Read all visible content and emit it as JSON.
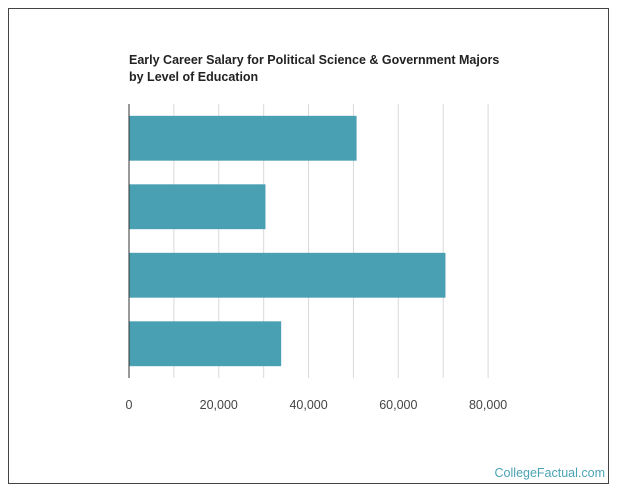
{
  "chart_data": {
    "type": "bar",
    "orientation": "horizontal",
    "title_lines": [
      "Early Career Salary for Political Science & Government Majors",
      "by Level of Education"
    ],
    "categories": [
      "",
      "",
      "",
      ""
    ],
    "values": [
      50700,
      30400,
      70500,
      33900
    ],
    "xlim": [
      0,
      90000
    ],
    "xticks": [
      0,
      20000,
      40000,
      60000,
      80000
    ],
    "xtick_labels": [
      "0",
      "20,000",
      "40,000",
      "60,000",
      "80,000"
    ],
    "grid": true,
    "colors": {
      "bar": "#4aa0b3",
      "grid": "#d9d9d9",
      "axis": "#333333"
    }
  },
  "footer": {
    "source": "CollegeFactual.com"
  }
}
